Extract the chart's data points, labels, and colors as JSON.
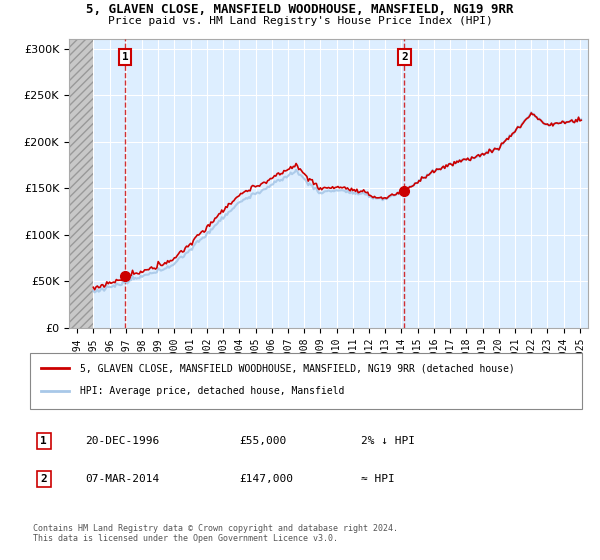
{
  "title1": "5, GLAVEN CLOSE, MANSFIELD WOODHOUSE, MANSFIELD, NG19 9RR",
  "title2": "Price paid vs. HM Land Registry's House Price Index (HPI)",
  "legend_line1": "5, GLAVEN CLOSE, MANSFIELD WOODHOUSE, MANSFIELD, NG19 9RR (detached house)",
  "legend_line2": "HPI: Average price, detached house, Mansfield",
  "annotation1_label": "1",
  "annotation1_date": "20-DEC-1996",
  "annotation1_price": "£55,000",
  "annotation1_hpi": "2% ↓ HPI",
  "annotation2_label": "2",
  "annotation2_date": "07-MAR-2014",
  "annotation2_price": "£147,000",
  "annotation2_hpi": "≈ HPI",
  "footnote1": "Contains HM Land Registry data © Crown copyright and database right 2024.",
  "footnote2": "This data is licensed under the Open Government Licence v3.0.",
  "sale1_year": 1996.97,
  "sale1_value": 55000,
  "sale2_year": 2014.18,
  "sale2_value": 147000,
  "hpi_color": "#a8c8e8",
  "price_color": "#cc0000",
  "sale_dot_color": "#cc0000",
  "bg_fill_color": "#ddeeff",
  "ylim_min": 0,
  "ylim_max": 310000,
  "xlim_min": 1993.5,
  "xlim_max": 2025.5,
  "hatch_end": 1995.0
}
